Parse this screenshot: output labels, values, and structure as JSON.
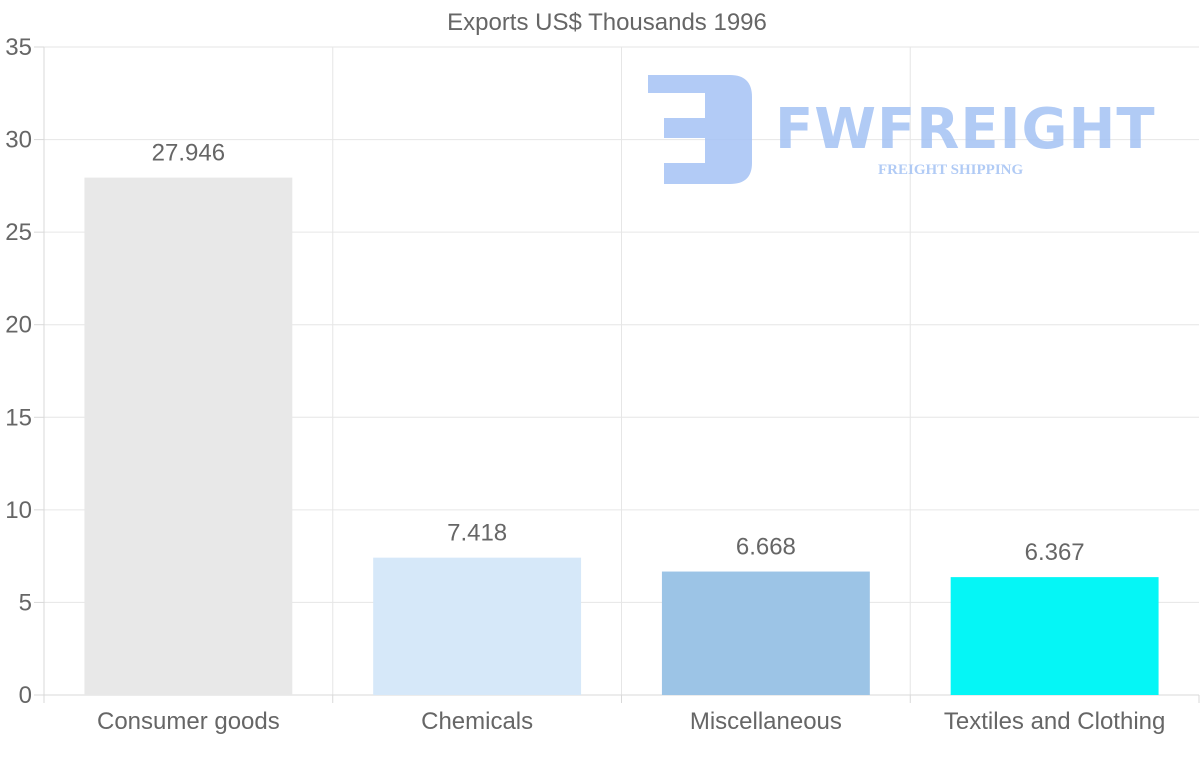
{
  "chart_data": {
    "type": "bar",
    "title": "Exports US$ Thousands 1996",
    "categories": [
      "Consumer goods",
      "Chemicals",
      "Miscellaneous",
      "Textiles and Clothing"
    ],
    "values": [
      27.946,
      7.418,
      6.668,
      6.367
    ],
    "data_labels": [
      "27.946",
      "7.418",
      "6.668",
      "6.367"
    ],
    "bar_colors": [
      "#e8e8e8",
      "#d6e8f9",
      "#9cc4e6",
      "#05f6f6"
    ],
    "xlabel": "",
    "ylabel": "",
    "ylim": [
      0,
      35
    ],
    "yticks": [
      0,
      5,
      10,
      15,
      20,
      25,
      30,
      35
    ],
    "grid": true,
    "legend": "none"
  },
  "watermark": {
    "brand": "FWFREIGHT",
    "tagline": "FREIGHT SHIPPING",
    "color": "#a4c2f4"
  }
}
